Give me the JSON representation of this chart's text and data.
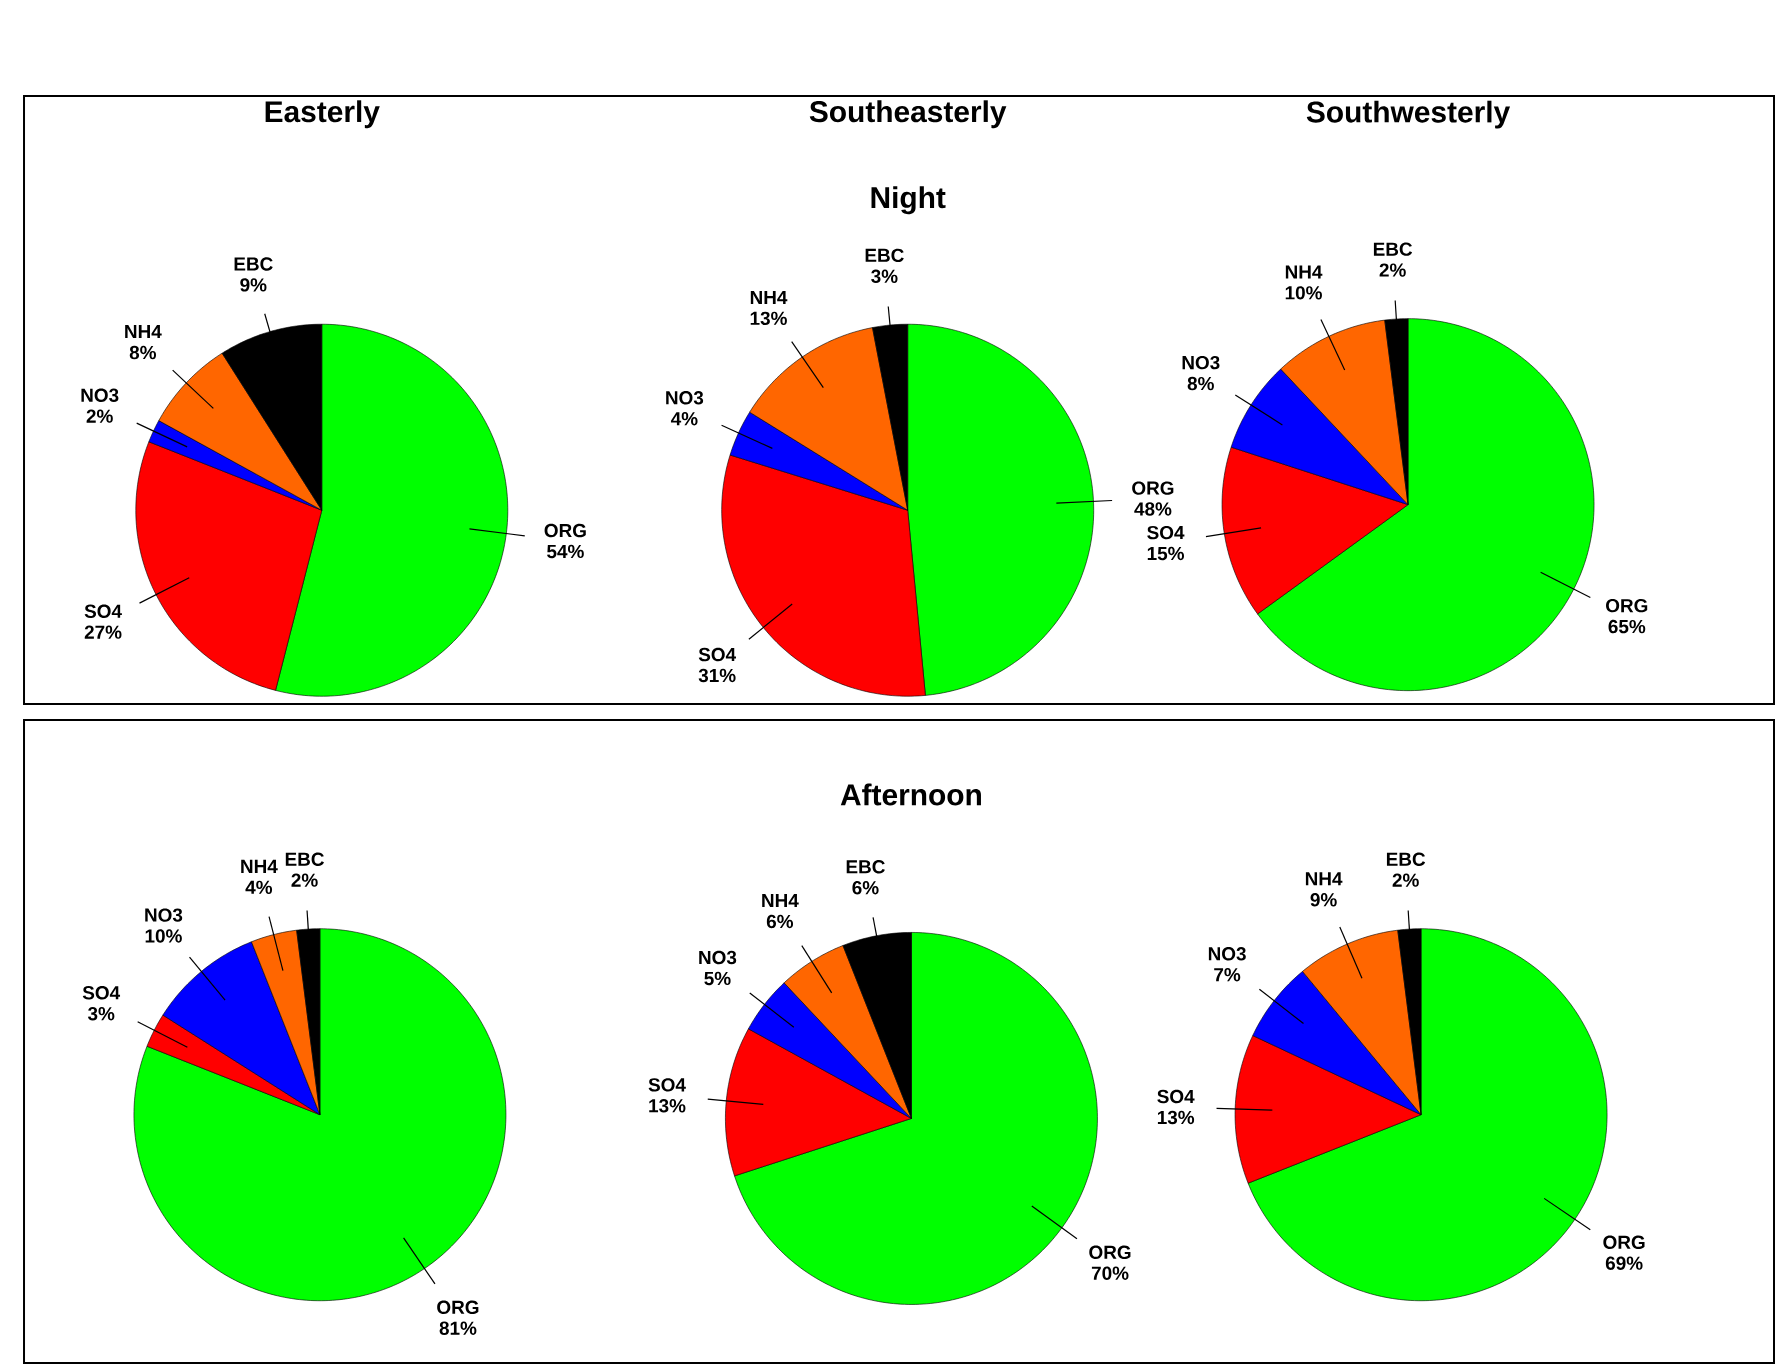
{
  "chart_data": [
    {
      "type": "pie",
      "title": "Easterly",
      "categories": [
        "ORG",
        "SO4",
        "NO3",
        "NH4",
        "EBC"
      ],
      "values": [
        54,
        27,
        2,
        8,
        9
      ],
      "value_labels": [
        "54%",
        "27%",
        "2%",
        "8%",
        "9%"
      ],
      "colors": [
        "#00ff00",
        "#ff0000",
        "#0000ff",
        "#ff6600",
        "#000000"
      ]
    },
    {
      "type": "pie",
      "title": "Southeasterly",
      "subtitle": "Night",
      "categories": [
        "ORG",
        "SO4",
        "NO3",
        "NH4",
        "EBC"
      ],
      "values": [
        48,
        31,
        4,
        13,
        3
      ],
      "value_labels": [
        "48%",
        "31%",
        "4%",
        "13%",
        "3%"
      ],
      "colors": [
        "#00ff00",
        "#ff0000",
        "#0000ff",
        "#ff6600",
        "#000000"
      ]
    },
    {
      "type": "pie",
      "title": "Southwesterly",
      "categories": [
        "ORG",
        "SO4",
        "NO3",
        "NH4",
        "EBC"
      ],
      "values": [
        65,
        15,
        8,
        10,
        2
      ],
      "value_labels": [
        "65%",
        "15%",
        "8%",
        "10%",
        "2%"
      ],
      "colors": [
        "#00ff00",
        "#ff0000",
        "#0000ff",
        "#ff6600",
        "#000000"
      ]
    },
    {
      "type": "pie",
      "categories": [
        "ORG",
        "SO4",
        "NO3",
        "NH4",
        "EBC"
      ],
      "values": [
        81,
        3,
        10,
        4,
        2
      ],
      "value_labels": [
        "81%",
        "3%",
        "10%",
        "4%",
        "2%"
      ],
      "colors": [
        "#00ff00",
        "#ff0000",
        "#0000ff",
        "#ff6600",
        "#000000"
      ]
    },
    {
      "type": "pie",
      "subtitle": "Afternoon",
      "categories": [
        "ORG",
        "SO4",
        "NO3",
        "NH4",
        "EBC"
      ],
      "values": [
        70,
        13,
        5,
        6,
        6
      ],
      "value_labels": [
        "70%",
        "13%",
        "5%",
        "6%",
        "6%"
      ],
      "colors": [
        "#00ff00",
        "#ff0000",
        "#0000ff",
        "#ff6600",
        "#000000"
      ]
    },
    {
      "type": "pie",
      "categories": [
        "ORG",
        "SO4",
        "NO3",
        "NH4",
        "EBC"
      ],
      "values": [
        69,
        13,
        7,
        9,
        2
      ],
      "value_labels": [
        "69%",
        "13%",
        "7%",
        "9%",
        "2%"
      ],
      "colors": [
        "#00ff00",
        "#ff0000",
        "#0000ff",
        "#ff6600",
        "#000000"
      ]
    }
  ]
}
